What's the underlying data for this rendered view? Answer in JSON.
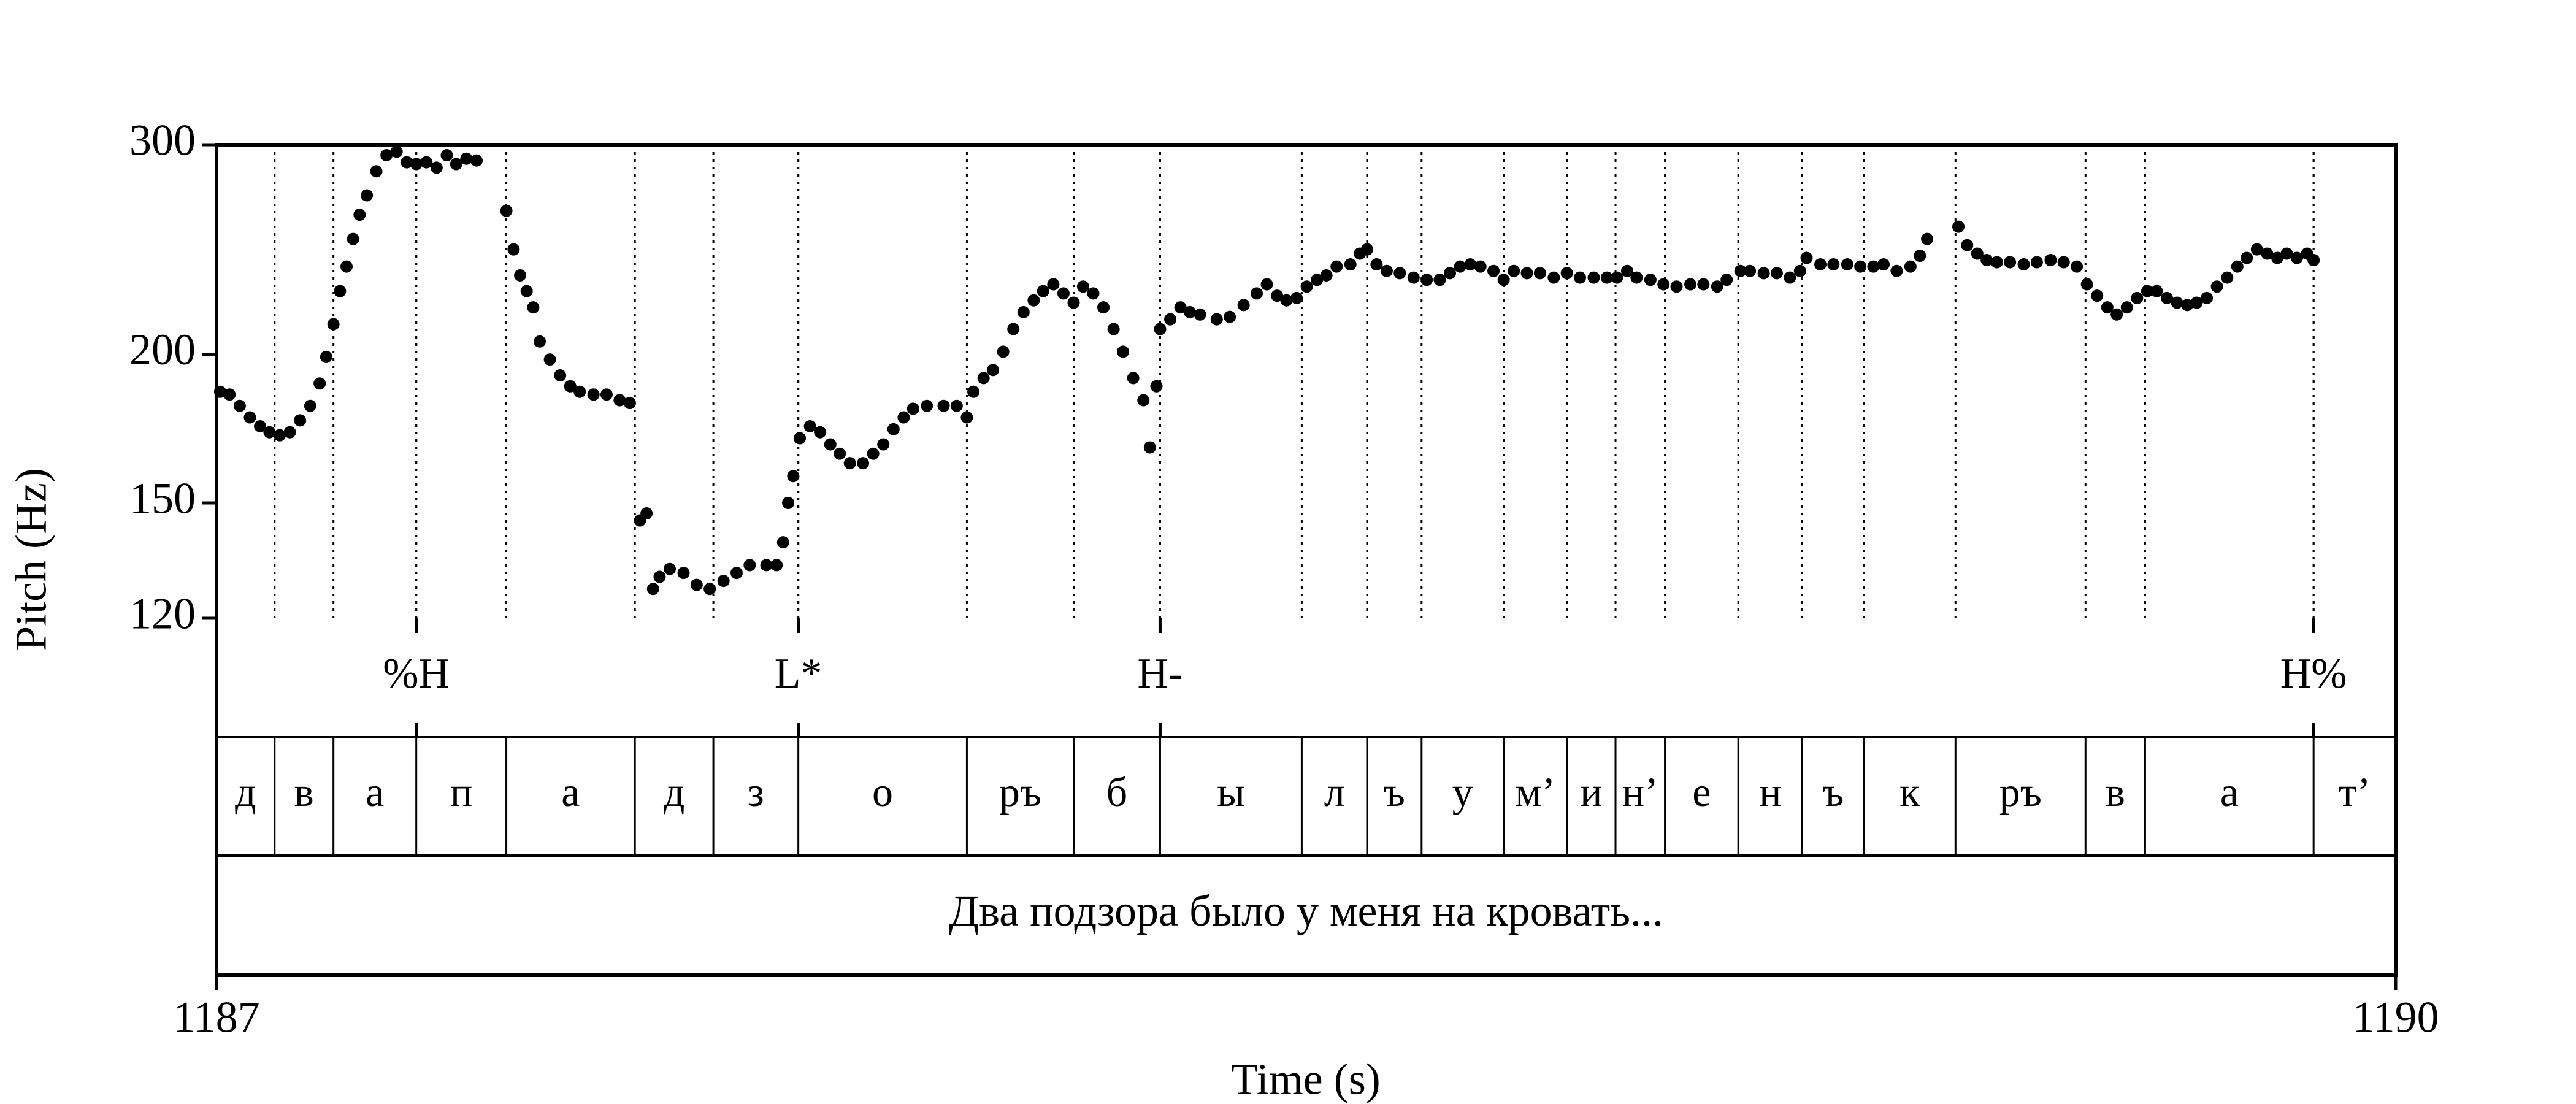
{
  "chart_data": {
    "type": "pitch",
    "y_label": "Pitch (Hz)",
    "x_label": "Time (s)",
    "y_scale": "log",
    "ylim": [
      120,
      300
    ],
    "yticks": [
      120,
      150,
      200,
      300
    ],
    "xlim": [
      1187,
      1190
    ],
    "xticks": [
      1187,
      1190
    ],
    "color": "#000000",
    "x": [
      1187.005,
      1187.018,
      1187.032,
      1187.046,
      1187.06,
      1187.073,
      1187.087,
      1187.101,
      1187.115,
      1187.129,
      1187.142,
      1187.151,
      1187.161,
      1187.17,
      1187.179,
      1187.188,
      1187.197,
      1187.207,
      1187.22,
      1187.234,
      1187.248,
      1187.262,
      1187.275,
      1187.289,
      1187.303,
      1187.317,
      1187.33,
      1187.344,
      1187.358,
      1187.399,
      1187.409,
      1187.418,
      1187.427,
      1187.436,
      1187.445,
      1187.459,
      1187.473,
      1187.487,
      1187.5,
      1187.519,
      1187.537,
      1187.555,
      1187.569,
      1187.583,
      1187.592,
      1187.601,
      1187.61,
      1187.624,
      1187.643,
      1187.661,
      1187.679,
      1187.698,
      1187.716,
      1187.734,
      1187.757,
      1187.771,
      1187.78,
      1187.787,
      1187.794,
      1187.803,
      1187.817,
      1187.831,
      1187.845,
      1187.858,
      1187.872,
      1187.89,
      1187.904,
      1187.918,
      1187.932,
      1187.946,
      1187.959,
      1187.978,
      1188.001,
      1188.019,
      1188.033,
      1188.042,
      1188.056,
      1188.069,
      1188.083,
      1188.097,
      1188.111,
      1188.125,
      1188.138,
      1188.152,
      1188.166,
      1188.18,
      1188.193,
      1188.207,
      1188.221,
      1188.235,
      1188.248,
      1188.262,
      1188.276,
      1188.285,
      1188.294,
      1188.299,
      1188.313,
      1188.327,
      1188.34,
      1188.354,
      1188.377,
      1188.395,
      1188.414,
      1188.432,
      1188.446,
      1188.46,
      1188.473,
      1188.487,
      1188.501,
      1188.515,
      1188.528,
      1188.542,
      1188.561,
      1188.574,
      1188.584,
      1188.597,
      1188.611,
      1188.629,
      1188.648,
      1188.666,
      1188.684,
      1188.698,
      1188.712,
      1188.726,
      1188.74,
      1188.758,
      1188.772,
      1188.786,
      1188.804,
      1188.822,
      1188.841,
      1188.859,
      1188.877,
      1188.896,
      1188.914,
      1188.928,
      1188.942,
      1188.955,
      1188.974,
      1188.992,
      1189.01,
      1189.029,
      1189.047,
      1189.066,
      1189.079,
      1189.098,
      1189.111,
      1189.13,
      1189.148,
      1189.166,
      1189.18,
      1189.189,
      1189.208,
      1189.226,
      1189.245,
      1189.263,
      1189.281,
      1189.295,
      1189.313,
      1189.332,
      1189.345,
      1189.355,
      1189.398,
      1189.41,
      1189.424,
      1189.437,
      1189.451,
      1189.469,
      1189.488,
      1189.506,
      1189.525,
      1189.543,
      1189.561,
      1189.575,
      1189.589,
      1189.603,
      1189.616,
      1189.63,
      1189.644,
      1189.658,
      1189.671,
      1189.685,
      1189.699,
      1189.713,
      1189.726,
      1189.74,
      1189.754,
      1189.768,
      1189.782,
      1189.795,
      1189.809,
      1189.823,
      1189.837,
      1189.85,
      1189.864,
      1189.878,
      1189.887
    ],
    "values": [
      186,
      185,
      181,
      177,
      174,
      172,
      171,
      172,
      176,
      181,
      189,
      199,
      212,
      226,
      237,
      250,
      262,
      272,
      285,
      294,
      296,
      290,
      289,
      290,
      287,
      294,
      289,
      292,
      291,
      264,
      245,
      233,
      226,
      219,
      205,
      198,
      192,
      188,
      186,
      185,
      185,
      183,
      182,
      145,
      147,
      127,
      130,
      132,
      131,
      128,
      127,
      129,
      131,
      133,
      133,
      133,
      139,
      150,
      158,
      170,
      174,
      172,
      168,
      165,
      162,
      162,
      165,
      168,
      173,
      177,
      180,
      181,
      181,
      181,
      177,
      186,
      191,
      194,
      201,
      210,
      217,
      222,
      226,
      229,
      225,
      221,
      228,
      225,
      219,
      210,
      201,
      191,
      183,
      167,
      188,
      210,
      214,
      219,
      217,
      216,
      214,
      215,
      220,
      225,
      229,
      224,
      222,
      223,
      228,
      231,
      233,
      237,
      238,
      243,
      245,
      238,
      235,
      234,
      232,
      231,
      231,
      234,
      237,
      238,
      237,
      235,
      231,
      235,
      234,
      234,
      232,
      234,
      232,
      232,
      232,
      232,
      235,
      232,
      231,
      229,
      228,
      229,
      229,
      228,
      231,
      235,
      235,
      234,
      234,
      232,
      235,
      241,
      238,
      238,
      238,
      237,
      237,
      238,
      235,
      237,
      242,
      250,
      256,
      247,
      243,
      240,
      239,
      239,
      238,
      239,
      240,
      239,
      237,
      229,
      224,
      219,
      216,
      219,
      223,
      226,
      226,
      223,
      221,
      220,
      221,
      223,
      228,
      232,
      237,
      241,
      245,
      243,
      241,
      243,
      241,
      243,
      240
    ],
    "tiers": [
      {
        "kind": "point",
        "labels": [
          "%H",
          "L*",
          "H-",
          "H%"
        ],
        "times": [
          1187.275,
          1187.801,
          1188.299,
          1189.887
        ]
      },
      {
        "kind": "interval",
        "labels": [
          "д",
          "в",
          "а",
          "п",
          "а",
          "д",
          "з",
          "о",
          "ръ",
          "б",
          "ы",
          "л",
          "ъ",
          "у",
          "м’",
          "и",
          "н’",
          "е",
          "н",
          "ъ",
          "к",
          "ръ",
          "в",
          "а",
          "т’"
        ],
        "boundaries": [
          1187,
          1187.08,
          1187.161,
          1187.275,
          1187.399,
          1187.576,
          1187.684,
          1187.801,
          1188.033,
          1188.18,
          1188.299,
          1188.494,
          1188.584,
          1188.659,
          1188.772,
          1188.859,
          1188.926,
          1188.994,
          1189.095,
          1189.183,
          1189.268,
          1189.394,
          1189.573,
          1189.655,
          1189.887,
          1190
        ]
      },
      {
        "kind": "interval",
        "labels": [
          "Два подзора было у меня на кровать..."
        ],
        "boundaries": [
          1187,
          1190
        ]
      }
    ]
  }
}
